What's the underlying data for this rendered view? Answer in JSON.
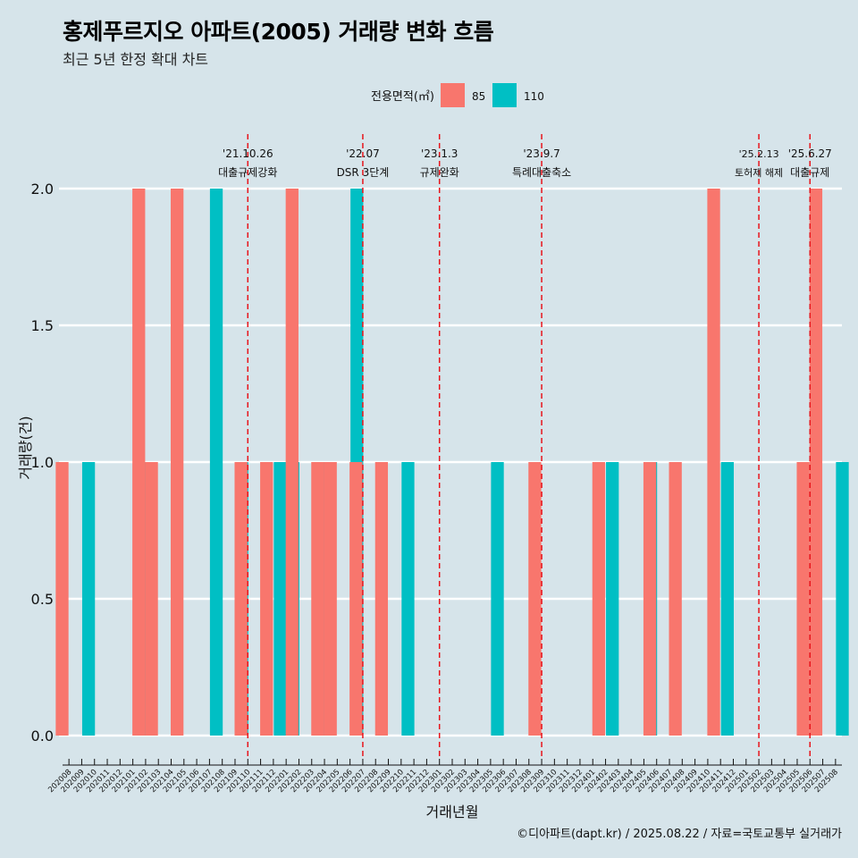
{
  "title": "홍제푸르지오 아파트(2005) 거래량 변화 흐름",
  "subtitle": "최근 5년 한정 확대 차트",
  "caption": "©디아파트(dapt.kr) / 2025.08.22 / 자료=국토교통부 실거래가",
  "colors": {
    "background": "#d6e4ea",
    "s85": "#f8766d",
    "s110": "#00bfc4",
    "event": "#e8141b"
  },
  "chart_data": {
    "type": "bar",
    "xlabel": "거래년월",
    "ylabel": "거래량(건)",
    "ylim": [
      0,
      2
    ],
    "yticks": [
      "0.0",
      "0.5",
      "1.0",
      "1.5",
      "2.0"
    ],
    "legend_title": "전용면적(㎡)",
    "legend_position": "top",
    "grid": true,
    "categories": [
      "202008",
      "202009",
      "202010",
      "202011",
      "202012",
      "202101",
      "202102",
      "202103",
      "202104",
      "202105",
      "202106",
      "202107",
      "202108",
      "202109",
      "202110",
      "202111",
      "202112",
      "202201",
      "202202",
      "202203",
      "202204",
      "202205",
      "202206",
      "202207",
      "202208",
      "202209",
      "202210",
      "202211",
      "202212",
      "202301",
      "202302",
      "202303",
      "202304",
      "202305",
      "202306",
      "202307",
      "202308",
      "202309",
      "202310",
      "202311",
      "202312",
      "202401",
      "202402",
      "202403",
      "202404",
      "202405",
      "202406",
      "202407",
      "202408",
      "202409",
      "202410",
      "202411",
      "202412",
      "202501",
      "202502",
      "202503",
      "202504",
      "202505",
      "202506",
      "202507",
      "202508"
    ],
    "series": [
      {
        "name": "85",
        "values": [
          1,
          0,
          0,
          0,
          0,
          0,
          2,
          1,
          0,
          2,
          0,
          0,
          0,
          0,
          1,
          0,
          1,
          0,
          2,
          0,
          1,
          1,
          0,
          1,
          0,
          1,
          0,
          0,
          0,
          0,
          0,
          0,
          0,
          0,
          0,
          0,
          0,
          1,
          0,
          0,
          0,
          0,
          1,
          0,
          0,
          0,
          1,
          0,
          1,
          0,
          0,
          2,
          0,
          0,
          0,
          0,
          0,
          0,
          1,
          2,
          0
        ]
      },
      {
        "name": "110",
        "values": [
          0,
          1,
          0,
          0,
          0,
          1,
          0,
          0,
          0,
          0,
          0,
          2,
          0,
          1,
          0,
          0,
          1,
          1,
          0,
          1,
          0,
          0,
          2,
          0,
          0,
          0,
          1,
          0,
          0,
          0,
          0,
          0,
          0,
          1,
          0,
          0,
          0,
          0,
          0,
          0,
          0,
          0,
          1,
          0,
          0,
          1,
          0,
          0,
          0,
          0,
          0,
          1,
          0,
          0,
          0,
          0,
          0,
          0,
          0,
          0,
          1
        ]
      }
    ],
    "annotations": [
      {
        "month": "202110",
        "date": "'21.10.26",
        "label": "대출규제강화",
        "size": "large"
      },
      {
        "month": "202207",
        "date": "'22.07",
        "label": "DSR 3단계",
        "size": "large"
      },
      {
        "month": "202301",
        "date": "'23.1.3",
        "label": "규제완화",
        "size": "large"
      },
      {
        "month": "202309",
        "date": "'23.9.7",
        "label": "특례대출축소",
        "size": "large"
      },
      {
        "month": "202502",
        "date": "'25.2.13",
        "label": "토허제 해제",
        "size": "small"
      },
      {
        "month": "202506",
        "date": "'25.6.27",
        "label": "대출규제",
        "size": "large"
      }
    ]
  }
}
